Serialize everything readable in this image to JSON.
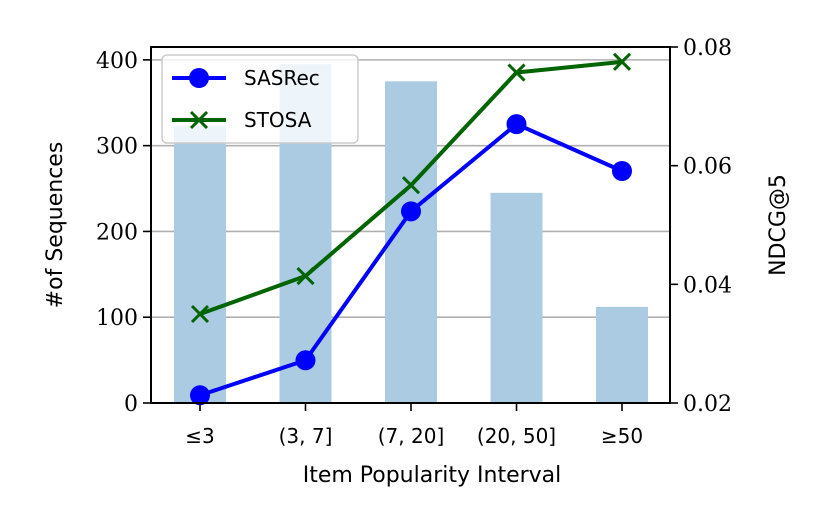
{
  "chart_data": {
    "type": "bar+line",
    "categories": [
      "≤3",
      "(3, 7]",
      "(7, 20]",
      "(20, 50]",
      "≥50"
    ],
    "xlabel": "Item Popularity Interval",
    "bars": {
      "axis": "left",
      "ylabel": "#of Sequences",
      "values": [
        323,
        395,
        375,
        245,
        112
      ],
      "ylim": [
        0,
        415
      ],
      "ticks": [
        0,
        100,
        200,
        300,
        400
      ],
      "color": "#abcbe3",
      "label_color": "#add8e6"
    },
    "series": [
      {
        "name": "SASRec",
        "axis": "right",
        "values": [
          0.0213,
          0.0272,
          0.0523,
          0.067,
          0.0591
        ],
        "color": "#0000ff",
        "marker": "circle"
      },
      {
        "name": "STOSA",
        "axis": "right",
        "values": [
          0.035,
          0.0414,
          0.0567,
          0.0757,
          0.0775
        ],
        "color": "#006400",
        "marker": "x"
      }
    ],
    "right_axis": {
      "ylabel": "NDCG@5",
      "ylim": [
        0.02,
        0.08
      ],
      "ticks": [
        "0.02",
        "0.04",
        "0.06",
        "0.08"
      ]
    },
    "grid": "horizontal, left axis",
    "legend_position": "upper-left"
  }
}
